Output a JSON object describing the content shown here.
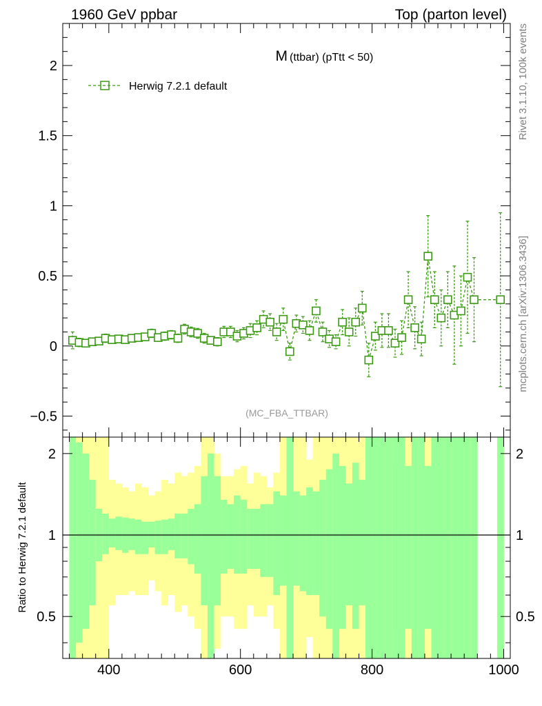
{
  "header": {
    "left": "1960 GeV ppbar",
    "right": "Top (parton level)"
  },
  "side_labels": {
    "rivet": "Rivet 3.1.10,  100k events",
    "mcplots": "mcplots.cern.ch [arXiv:1306.3436]"
  },
  "colors": {
    "series": "#3a9a12",
    "band_inner": "#99ff99",
    "band_outer": "#ffff99"
  },
  "chart_data": [
    {
      "type": "line",
      "title_main": "M",
      "title_sub": "(ttbar) (pTtt < 50)",
      "watermark": "(MC_FBA_TTBAR)",
      "xlabel": "",
      "ylabel": "",
      "xlim": [
        330,
        1010
      ],
      "ylim": [
        -0.65,
        2.3
      ],
      "yticks": [
        -0.5,
        0,
        0.5,
        1,
        1.5,
        2
      ],
      "ytick_labels": [
        "−0.5",
        "0",
        "0.5",
        "1",
        "1.5",
        "2"
      ],
      "legend_position": "top-left",
      "series": [
        {
          "name": "Herwig 7.2.1 default",
          "marker": "open-square",
          "linestyle": "dashed",
          "x": [
            345,
            355,
            365,
            375,
            385,
            395,
            405,
            415,
            425,
            435,
            445,
            455,
            465,
            475,
            485,
            495,
            505,
            515,
            525,
            535,
            545,
            555,
            565,
            575,
            585,
            595,
            605,
            615,
            625,
            635,
            645,
            655,
            665,
            675,
            685,
            695,
            705,
            715,
            725,
            735,
            745,
            755,
            765,
            775,
            785,
            795,
            805,
            815,
            825,
            835,
            845,
            855,
            865,
            875,
            885,
            895,
            905,
            915,
            925,
            935,
            945,
            955,
            995
          ],
          "y": [
            0.04,
            0.025,
            0.02,
            0.03,
            0.035,
            0.055,
            0.045,
            0.05,
            0.045,
            0.055,
            0.06,
            0.065,
            0.09,
            0.06,
            0.07,
            0.08,
            0.055,
            0.12,
            0.1,
            0.09,
            0.055,
            0.04,
            0.03,
            0.1,
            0.1,
            0.07,
            0.09,
            0.11,
            0.13,
            0.19,
            0.17,
            0.1,
            0.19,
            -0.04,
            0.16,
            0.15,
            0.11,
            0.25,
            0.1,
            0.05,
            0.03,
            0.17,
            0.1,
            0.17,
            0.27,
            -0.1,
            0.07,
            0.11,
            0.11,
            0.02,
            0.06,
            0.33,
            0.13,
            0.05,
            0.64,
            0.33,
            0.2,
            0.33,
            0.22,
            0.25,
            0.49,
            0.33,
            0.33
          ],
          "err": [
            0.06,
            0.03,
            0.02,
            0.02,
            0.02,
            0.03,
            0.025,
            0.02,
            0.02,
            0.02,
            0.025,
            0.025,
            0.03,
            0.025,
            0.03,
            0.03,
            0.03,
            0.035,
            0.035,
            0.035,
            0.035,
            0.025,
            0.03,
            0.04,
            0.04,
            0.04,
            0.04,
            0.05,
            0.05,
            0.06,
            0.06,
            0.06,
            0.08,
            0.06,
            0.06,
            0.06,
            0.07,
            0.08,
            0.07,
            0.06,
            0.05,
            0.09,
            0.1,
            0.1,
            0.12,
            0.12,
            0.1,
            0.12,
            0.12,
            0.1,
            0.12,
            0.2,
            0.15,
            0.12,
            0.29,
            0.2,
            0.2,
            0.2,
            0.35,
            0.25,
            0.4,
            0.3,
            0.62
          ]
        }
      ]
    },
    {
      "type": "area",
      "ylabel": "Ratio to Herwig 7.2.1 default",
      "xlim": [
        330,
        1010
      ],
      "ylim": [
        0.35,
        2.3
      ],
      "yticks": [
        0.5,
        1,
        2
      ],
      "ytick_labels": [
        "0.5",
        "1",
        "2"
      ],
      "xticks": [
        400,
        600,
        800,
        1000
      ],
      "xtick_labels": [
        "400",
        "600",
        "800",
        "1000"
      ],
      "reference_line": 1,
      "bins": {
        "x": [
          345,
          355,
          365,
          375,
          385,
          395,
          405,
          415,
          425,
          435,
          445,
          455,
          465,
          475,
          485,
          495,
          505,
          515,
          525,
          535,
          545,
          555,
          565,
          575,
          585,
          595,
          605,
          615,
          625,
          635,
          645,
          655,
          665,
          675,
          685,
          695,
          705,
          715,
          725,
          735,
          745,
          755,
          765,
          775,
          785,
          795,
          805,
          815,
          825,
          835,
          845,
          855,
          865,
          875,
          885,
          895,
          905,
          915,
          925,
          935,
          945,
          955,
          995
        ],
        "inner_hi": [
          2.3,
          2.2,
          2.0,
          1.6,
          1.25,
          1.2,
          1.15,
          1.17,
          1.16,
          1.15,
          1.14,
          1.12,
          1.12,
          1.13,
          1.14,
          1.15,
          1.2,
          1.2,
          1.25,
          1.3,
          1.65,
          2.0,
          1.65,
          1.35,
          1.3,
          1.4,
          1.35,
          1.25,
          1.25,
          1.3,
          1.3,
          1.45,
          1.4,
          2.3,
          1.45,
          1.4,
          1.5,
          1.45,
          1.6,
          1.75,
          2.0,
          1.8,
          1.55,
          1.85,
          1.6,
          2.3,
          2.3,
          2.3,
          2.3,
          2.3,
          2.3,
          1.8,
          2.3,
          2.3,
          1.8,
          2.3,
          2.3,
          2.3,
          2.3,
          2.3,
          2.3,
          2.3,
          2.3
        ],
        "outer_hi": [
          2.3,
          2.3,
          2.3,
          2.3,
          2.3,
          2.3,
          1.6,
          1.55,
          1.5,
          1.45,
          1.55,
          1.5,
          1.4,
          1.45,
          1.6,
          1.55,
          1.7,
          1.65,
          1.7,
          1.8,
          2.3,
          2.3,
          2.0,
          1.65,
          1.65,
          1.75,
          1.8,
          1.55,
          1.7,
          1.65,
          1.5,
          1.7,
          2.3,
          2.3,
          2.3,
          2.3,
          1.9,
          2.3,
          2.3,
          2.3,
          2.3,
          2.3,
          2.3,
          2.3,
          2.3,
          2.3,
          2.3,
          2.3,
          2.3,
          2.3,
          2.3,
          2.3,
          2.3,
          2.3,
          2.3,
          2.3,
          2.3,
          2.3,
          2.3,
          2.3,
          2.3,
          2.3,
          2.3
        ],
        "inner_lo": [
          0.35,
          0.4,
          0.45,
          0.55,
          0.8,
          0.85,
          0.9,
          0.88,
          0.86,
          0.88,
          0.85,
          0.85,
          0.9,
          0.85,
          0.85,
          0.88,
          0.82,
          0.82,
          0.78,
          0.72,
          0.55,
          0.35,
          0.55,
          0.72,
          0.75,
          0.72,
          0.72,
          0.75,
          0.75,
          0.7,
          0.7,
          0.6,
          0.65,
          0.35,
          0.65,
          0.62,
          0.6,
          0.6,
          0.5,
          0.45,
          0.35,
          0.45,
          0.55,
          0.45,
          0.55,
          0.35,
          0.35,
          0.35,
          0.35,
          0.35,
          0.35,
          0.45,
          0.35,
          0.35,
          0.45,
          0.35,
          0.35,
          0.35,
          0.35,
          0.35,
          0.35,
          0.35,
          0.35
        ],
        "outer_lo": [
          0.35,
          0.35,
          0.35,
          0.35,
          0.35,
          0.35,
          0.55,
          0.6,
          0.6,
          0.62,
          0.6,
          0.6,
          0.68,
          0.62,
          0.55,
          0.6,
          0.52,
          0.55,
          0.5,
          0.45,
          0.35,
          0.35,
          0.38,
          0.5,
          0.5,
          0.45,
          0.45,
          0.55,
          0.5,
          0.5,
          0.55,
          0.45,
          0.35,
          0.35,
          0.35,
          0.35,
          0.42,
          0.35,
          0.35,
          0.35,
          0.35,
          0.35,
          0.35,
          0.35,
          0.35,
          0.35,
          0.35,
          0.35,
          0.35,
          0.35,
          0.35,
          0.35,
          0.35,
          0.35,
          0.35,
          0.35,
          0.35,
          0.35,
          0.35,
          0.35,
          0.35,
          0.35,
          0.35
        ]
      }
    }
  ]
}
